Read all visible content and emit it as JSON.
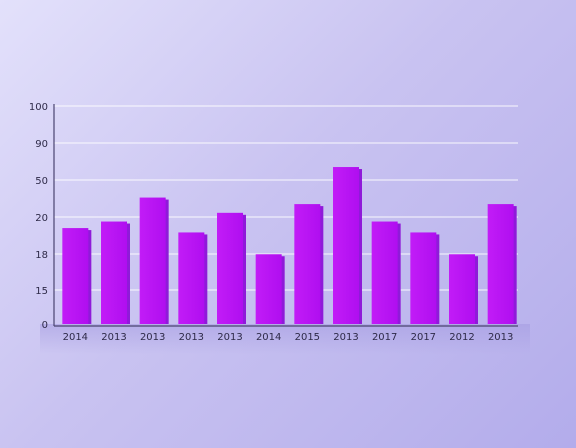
{
  "chart_data": {
    "type": "bar",
    "y_tick_labels": [
      "0",
      "15",
      "18",
      "20",
      "50",
      "90",
      "100"
    ],
    "categories": [
      "2014",
      "2013",
      "2013",
      "2013",
      "2013",
      "2014",
      "2015",
      "2013",
      "2017",
      "2017",
      "2012",
      "2013"
    ],
    "values": [
      44,
      47,
      58,
      42,
      51,
      32,
      55,
      72,
      47,
      42,
      32,
      55
    ],
    "ylim": [
      0,
      100
    ],
    "grid": true,
    "bar_color": "#bb11f5",
    "bar_side_color": "#8f1ad9"
  }
}
